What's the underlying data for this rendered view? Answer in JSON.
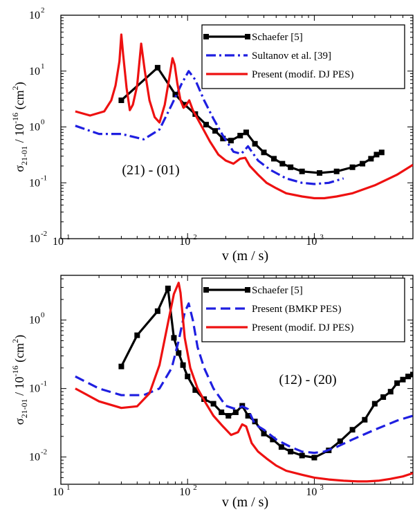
{
  "chart_data": [
    {
      "type": "line",
      "title": "",
      "annotation": "(21) - (01)",
      "xlabel": "v (m / s)",
      "ylabel": "σ21-01 / 10-16 (cm2)",
      "xscale": "log",
      "yscale": "log",
      "xlim": [
        10,
        6000
      ],
      "ylim": [
        0.01,
        100
      ],
      "grid": false,
      "legend_position": "top-right",
      "x_tick_labels": [
        "10",
        "10",
        "10"
      ],
      "x_tick_exps": [
        "1",
        "2",
        "3"
      ],
      "y_tick_labels": [
        "10",
        "10",
        "10",
        "10",
        "10"
      ],
      "y_tick_exps": [
        "-2",
        "-1",
        "0",
        "1",
        "2"
      ],
      "series": [
        {
          "name": "Schaefer [5]",
          "color": "#000000",
          "style": "solid-square-markers",
          "x": [
            30,
            58,
            80,
            95,
            115,
            140,
            165,
            190,
            220,
            260,
            290,
            340,
            400,
            480,
            560,
            650,
            800,
            1100,
            1500,
            2000,
            2400,
            2800,
            3100,
            3400
          ],
          "y": [
            3.0,
            11.5,
            3.8,
            2.5,
            1.7,
            1.1,
            0.85,
            0.62,
            0.57,
            0.7,
            0.8,
            0.5,
            0.35,
            0.27,
            0.22,
            0.19,
            0.16,
            0.15,
            0.16,
            0.19,
            0.22,
            0.27,
            0.32,
            0.35
          ]
        },
        {
          "name": "Sultanov et al. [39]",
          "color": "#1f1fe0",
          "style": "dash-dot",
          "x": [
            13,
            20,
            30,
            45,
            60,
            75,
            90,
            102,
            115,
            135,
            160,
            190,
            230,
            265,
            300,
            360,
            450,
            600,
            800,
            1000,
            1300,
            1700
          ],
          "y": [
            1.05,
            0.75,
            0.75,
            0.6,
            0.9,
            2.5,
            6.0,
            10.0,
            7.0,
            3.0,
            1.4,
            0.7,
            0.36,
            0.33,
            0.45,
            0.25,
            0.17,
            0.12,
            0.1,
            0.095,
            0.1,
            0.12
          ]
        },
        {
          "name": "Present (modif. DJ PES)",
          "color": "#ee1111",
          "style": "solid",
          "x": [
            13,
            17,
            22,
            25,
            27,
            29,
            30,
            31,
            33,
            35,
            37,
            40,
            43,
            46,
            50,
            55,
            60,
            66,
            72,
            76,
            79,
            83,
            88,
            93,
            98,
            103,
            110,
            130,
            150,
            175,
            200,
            230,
            260,
            285,
            310,
            360,
            420,
            500,
            600,
            800,
            1000,
            1200,
            1500,
            2000,
            3000,
            4500,
            6000
          ],
          "y": [
            1.9,
            1.6,
            1.9,
            3.0,
            5.5,
            15,
            45,
            20,
            5,
            2.0,
            2.5,
            5.5,
            31,
            10,
            3.0,
            1.5,
            1.2,
            2.5,
            8,
            17,
            13,
            6,
            3,
            2.2,
            2.5,
            3.0,
            2.0,
            1.0,
            0.55,
            0.32,
            0.25,
            0.22,
            0.27,
            0.28,
            0.2,
            0.14,
            0.1,
            0.08,
            0.065,
            0.057,
            0.053,
            0.053,
            0.057,
            0.065,
            0.09,
            0.14,
            0.21
          ]
        }
      ]
    },
    {
      "type": "line",
      "title": "",
      "annotation": "(12) - (20)",
      "xlabel": "v (m / s)",
      "ylabel": "σ21-01 / 10-16 (cm2)",
      "xscale": "log",
      "yscale": "log",
      "xlim": [
        10,
        6000
      ],
      "ylim": [
        0.004,
        4.5
      ],
      "grid": false,
      "legend_position": "top-right",
      "x_tick_labels": [
        "10",
        "10",
        "10"
      ],
      "x_tick_exps": [
        "1",
        "2",
        "3"
      ],
      "y_tick_labels": [
        "10",
        "10",
        "10"
      ],
      "y_tick_exps": [
        "-2",
        "-1",
        "0"
      ],
      "series": [
        {
          "name": "Schaefer [5]",
          "color": "#000000",
          "style": "solid-square-markers",
          "x": [
            30,
            40,
            58,
            70,
            78,
            85,
            92,
            100,
            115,
            135,
            160,
            185,
            210,
            240,
            270,
            300,
            340,
            400,
            470,
            550,
            650,
            800,
            1000,
            1300,
            1600,
            2000,
            2500,
            3000,
            3500,
            4000,
            4500,
            5000,
            5500,
            6000
          ],
          "y": [
            0.21,
            0.6,
            1.35,
            2.9,
            0.55,
            0.33,
            0.22,
            0.15,
            0.095,
            0.07,
            0.06,
            0.045,
            0.04,
            0.045,
            0.056,
            0.04,
            0.033,
            0.022,
            0.018,
            0.014,
            0.012,
            0.0105,
            0.0098,
            0.0125,
            0.017,
            0.025,
            0.035,
            0.06,
            0.075,
            0.09,
            0.12,
            0.135,
            0.15,
            0.16
          ]
        },
        {
          "name": "Present (BMKP PES)",
          "color": "#1f1fe0",
          "style": "dash",
          "x": [
            13,
            20,
            30,
            45,
            60,
            75,
            85,
            95,
            102,
            110,
            120,
            135,
            160,
            200,
            240,
            270,
            300,
            340,
            400,
            500,
            650,
            800,
            1000,
            1200,
            1500,
            2000,
            3000,
            4500,
            6000
          ],
          "y": [
            0.15,
            0.1,
            0.08,
            0.08,
            0.1,
            0.2,
            0.5,
            1.3,
            1.75,
            1.0,
            0.4,
            0.2,
            0.1,
            0.056,
            0.05,
            0.055,
            0.05,
            0.03,
            0.025,
            0.018,
            0.014,
            0.012,
            0.0115,
            0.012,
            0.014,
            0.018,
            0.025,
            0.034,
            0.04
          ]
        },
        {
          "name": "Present (modif. DJ PES)",
          "color": "#ee1111",
          "style": "solid",
          "x": [
            13,
            20,
            30,
            40,
            50,
            60,
            70,
            78,
            85,
            88,
            95,
            105,
            120,
            140,
            160,
            190,
            220,
            250,
            270,
            290,
            320,
            360,
            420,
            500,
            600,
            800,
            1000,
            1300,
            1700,
            2200,
            2600,
            3200,
            4000,
            5000,
            6000
          ],
          "y": [
            0.1,
            0.065,
            0.052,
            0.055,
            0.085,
            0.22,
            0.9,
            2.4,
            3.5,
            2.5,
            0.55,
            0.2,
            0.1,
            0.06,
            0.04,
            0.028,
            0.021,
            0.023,
            0.03,
            0.028,
            0.016,
            0.012,
            0.0095,
            0.0075,
            0.0063,
            0.0055,
            0.005,
            0.0047,
            0.0045,
            0.0044,
            0.0044,
            0.0045,
            0.0048,
            0.0052,
            0.0058
          ]
        }
      ]
    }
  ]
}
